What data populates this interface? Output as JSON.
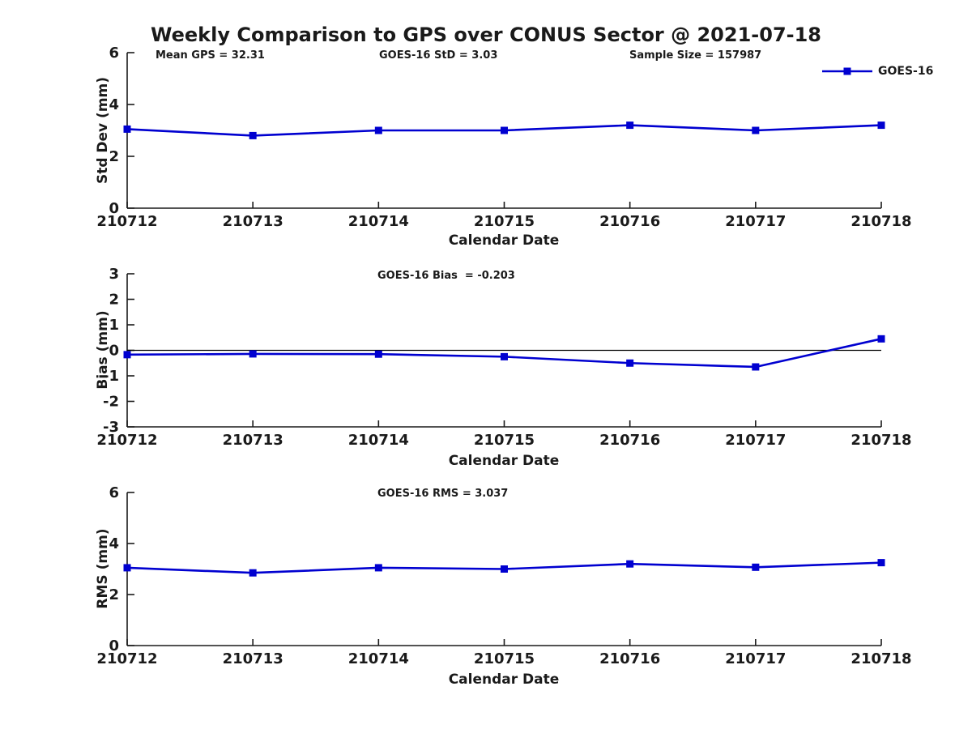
{
  "title": "Weekly Comparison to GPS over CONUS Sector @ 2021-07-18",
  "legend": {
    "label": "GOES-16",
    "position": "upper-right"
  },
  "colors": {
    "line": "#0000D0",
    "axis": "#1a1a1a",
    "text": "#1a1a1a",
    "zero_line": "#000000",
    "background": "#ffffff"
  },
  "chart_data": [
    {
      "type": "line",
      "name": "std-dev-subplot",
      "categories": [
        "210712",
        "210713",
        "210714",
        "210715",
        "210716",
        "210717",
        "210718"
      ],
      "series": [
        {
          "name": "GOES-16",
          "values": [
            3.05,
            2.8,
            3.0,
            3.0,
            3.2,
            3.0,
            3.2
          ]
        }
      ],
      "xlabel": "Calendar Date",
      "ylabel": "Std Dev (mm)",
      "ylim": [
        0,
        6
      ],
      "yticks": [
        0,
        2,
        4,
        6
      ],
      "grid": false,
      "zero_line": false,
      "annotations": [
        "Mean GPS = 32.31",
        "GOES-16 StD = 3.03",
        "Sample Size = 157987"
      ]
    },
    {
      "type": "line",
      "name": "bias-subplot",
      "categories": [
        "210712",
        "210713",
        "210714",
        "210715",
        "210716",
        "210717",
        "210718"
      ],
      "series": [
        {
          "name": "GOES-16",
          "values": [
            -0.17,
            -0.14,
            -0.15,
            -0.25,
            -0.5,
            -0.65,
            0.45
          ]
        }
      ],
      "xlabel": "Calendar Date",
      "ylabel": "Bias (mm)",
      "ylim": [
        -3,
        3
      ],
      "yticks": [
        -3,
        -2,
        -1,
        0,
        1,
        2,
        3
      ],
      "grid": false,
      "zero_line": true,
      "annotations": [
        "GOES-16 Bias  = -0.203"
      ]
    },
    {
      "type": "line",
      "name": "rms-subplot",
      "categories": [
        "210712",
        "210713",
        "210714",
        "210715",
        "210716",
        "210717",
        "210718"
      ],
      "series": [
        {
          "name": "GOES-16",
          "values": [
            3.05,
            2.85,
            3.05,
            3.0,
            3.2,
            3.07,
            3.25
          ]
        }
      ],
      "xlabel": "Calendar Date",
      "ylabel": "RMS (mm)",
      "ylim": [
        0,
        6
      ],
      "yticks": [
        0,
        2,
        4,
        6
      ],
      "grid": false,
      "zero_line": false,
      "annotations": [
        "GOES-16 RMS = 3.037"
      ]
    }
  ]
}
